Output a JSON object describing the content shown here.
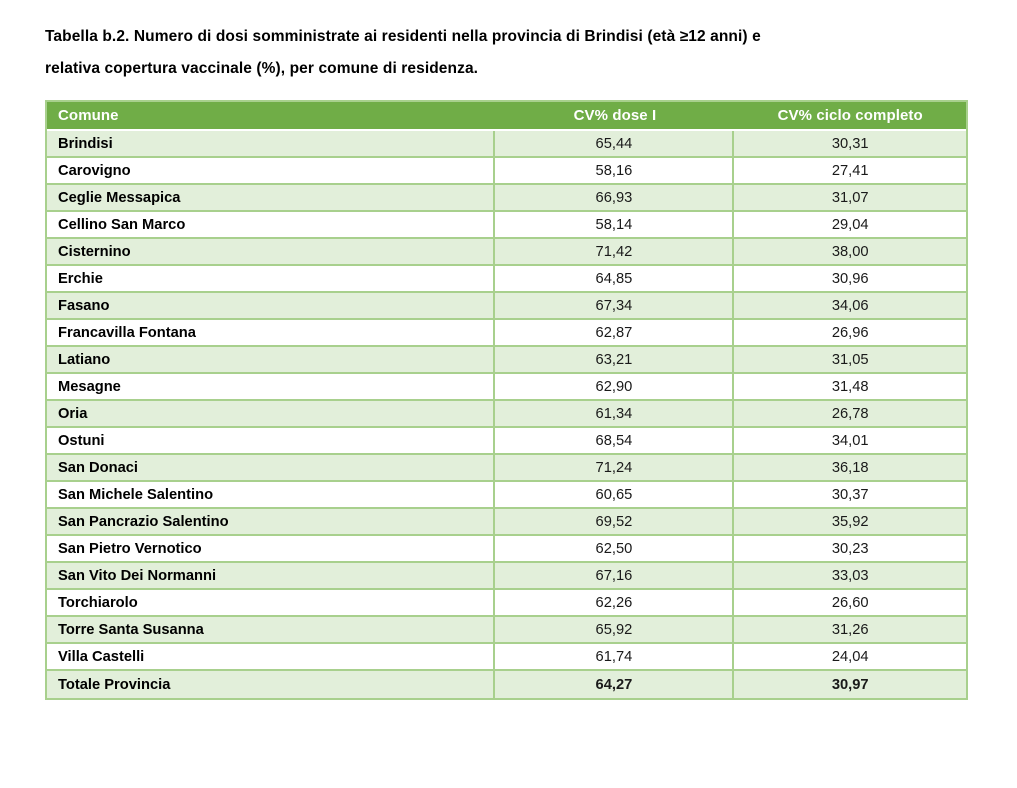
{
  "title": {
    "line1": "Tabella b.2. Numero di dosi somministrate ai residenti nella provincia di Brindisi (età ≥12 anni) e",
    "line2": "relativa copertura vaccinale (%), per comune di residenza."
  },
  "table": {
    "headers": [
      "Comune",
      "CV% dose I",
      "CV% ciclo completo"
    ],
    "rows": [
      [
        "Brindisi",
        "65,44",
        "30,31"
      ],
      [
        "Carovigno",
        "58,16",
        "27,41"
      ],
      [
        "Ceglie Messapica",
        "66,93",
        "31,07"
      ],
      [
        "Cellino San Marco",
        "58,14",
        "29,04"
      ],
      [
        "Cisternino",
        "71,42",
        "38,00"
      ],
      [
        "Erchie",
        "64,85",
        "30,96"
      ],
      [
        "Fasano",
        "67,34",
        "34,06"
      ],
      [
        "Francavilla Fontana",
        "62,87",
        "26,96"
      ],
      [
        "Latiano",
        "63,21",
        "31,05"
      ],
      [
        "Mesagne",
        "62,90",
        "31,48"
      ],
      [
        "Oria",
        "61,34",
        "26,78"
      ],
      [
        "Ostuni",
        "68,54",
        "34,01"
      ],
      [
        "San Donaci",
        "71,24",
        "36,18"
      ],
      [
        "San Michele Salentino",
        "60,65",
        "30,37"
      ],
      [
        "San Pancrazio Salentino",
        "69,52",
        "35,92"
      ],
      [
        "San Pietro Vernotico",
        "62,50",
        "30,23"
      ],
      [
        "San Vito Dei Normanni",
        "67,16",
        "33,03"
      ],
      [
        "Torchiarolo",
        "62,26",
        "26,60"
      ],
      [
        "Torre Santa Susanna",
        "65,92",
        "31,26"
      ],
      [
        "Villa Castelli",
        "61,74",
        "24,04"
      ]
    ],
    "total_row": [
      "Totale Provincia",
      "64,27",
      "30,97"
    ],
    "colors": {
      "header_bg": "#70AD47",
      "header_text": "#FFFFFF",
      "row_alt_bg": "#E2EFDA",
      "row_bg": "#FFFFFF",
      "border": "#A8D08D",
      "label_text": "#000000",
      "value_text": "#1A1A1A"
    }
  }
}
